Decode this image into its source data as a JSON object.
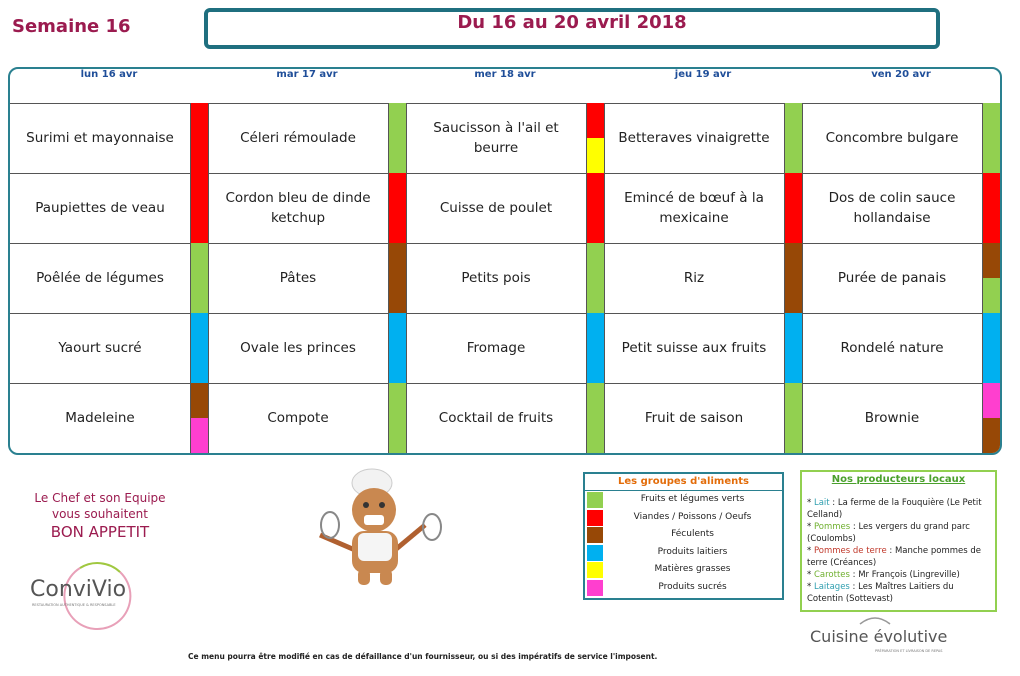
{
  "header": {
    "week": "Semaine 16",
    "date_range": "Du 16 au 20 avril 2018"
  },
  "menu": {
    "days": [
      "lun 16 avr",
      "mar 17 avr",
      "mer 18 avr",
      "jeu 19 avr",
      "ven 20 avr"
    ],
    "rows": [
      [
        {
          "text": "Surimi et mayonnaise",
          "groups": [
            1
          ]
        },
        {
          "text": "Céleri rémoulade",
          "groups": [
            0
          ]
        },
        {
          "text": "Saucisson à l'ail et beurre",
          "groups": [
            1,
            4
          ]
        },
        {
          "text": "Betteraves vinaigrette",
          "groups": [
            0
          ]
        },
        {
          "text": "Concombre bulgare",
          "groups": [
            0
          ]
        }
      ],
      [
        {
          "text": "Paupiettes de veau",
          "groups": [
            1
          ]
        },
        {
          "text": "Cordon bleu de dinde ketchup",
          "groups": [
            1
          ]
        },
        {
          "text": "Cuisse de poulet",
          "groups": [
            1
          ]
        },
        {
          "text": "Emincé de bœuf à la mexicaine",
          "groups": [
            1
          ]
        },
        {
          "text": "Dos de colin sauce hollandaise",
          "groups": [
            1
          ]
        }
      ],
      [
        {
          "text": "Poêlée de légumes",
          "groups": [
            0
          ]
        },
        {
          "text": "Pâtes",
          "groups": [
            2
          ]
        },
        {
          "text": "Petits pois",
          "groups": [
            0
          ]
        },
        {
          "text": "Riz",
          "groups": [
            2
          ]
        },
        {
          "text": "Purée de panais",
          "groups": [
            2,
            0
          ]
        }
      ],
      [
        {
          "text": "Yaourt sucré",
          "groups": [
            3
          ]
        },
        {
          "text": "Ovale les princes",
          "groups": [
            3
          ]
        },
        {
          "text": "Fromage",
          "groups": [
            3
          ]
        },
        {
          "text": "Petit suisse aux fruits",
          "groups": [
            3
          ]
        },
        {
          "text": "Rondelé nature",
          "groups": [
            3
          ]
        }
      ],
      [
        {
          "text": "Madeleine",
          "groups": [
            2,
            5
          ]
        },
        {
          "text": "Compote",
          "groups": [
            0
          ]
        },
        {
          "text": "Cocktail de fruits",
          "groups": [
            0
          ]
        },
        {
          "text": "Fruit de saison",
          "groups": [
            0
          ]
        },
        {
          "text": "Brownie",
          "groups": [
            5,
            2
          ]
        }
      ]
    ]
  },
  "legend": {
    "title": "Les groupes d'aliments",
    "items": [
      {
        "name": "Fruits et légumes verts",
        "color": "#92d050"
      },
      {
        "name": "Viandes / Poissons / Oeufs",
        "color": "#ff0000"
      },
      {
        "name": "Féculents",
        "color": "#974806"
      },
      {
        "name": "Produits laitiers",
        "color": "#00b0f0"
      },
      {
        "name": "Matières grasses",
        "color": "#ffff00"
      },
      {
        "name": "Produits sucrés",
        "color": "#ff3fcf"
      }
    ]
  },
  "producers": {
    "title": "Nos producteurs locaux",
    "bullet": "*",
    "items": [
      {
        "label": "Lait",
        "text": " : La ferme de la Fouquière (Le Petit Celland)",
        "color": "#31a0b0"
      },
      {
        "label": "Pommes",
        "text": " : Les vergers du grand parc (Coulombs)",
        "color": "#70b030"
      },
      {
        "label": "Pommes de terre",
        "text": " : Manche pommes de terre (Créances)",
        "color": "#c0392b"
      },
      {
        "label": "Carottes",
        "text": " : Mr François (Lingreville)",
        "color": "#70b030"
      },
      {
        "label": "Laitages",
        "text": " : Les Maîtres Laitiers du Cotentin (Sottevast)",
        "color": "#31a0b0"
      }
    ]
  },
  "greeting": {
    "line1": "Le Chef et son Equipe",
    "line2": "vous souhaitent",
    "line3": "BON APPETIT"
  },
  "logos": {
    "convivio": "ConviVio",
    "convivio_tagline": "RESTAURATION AUTHENTIQUE & RESPONSABLE",
    "cuisine": "Cuisine évolutive",
    "cuisine_tagline": "PRÉPARATION ET LIVRAISON DE REPAS"
  },
  "footer": "Ce menu pourra être modifié en cas de défaillance d'un fournisseur, ou si des impératifs de service l'imposent."
}
